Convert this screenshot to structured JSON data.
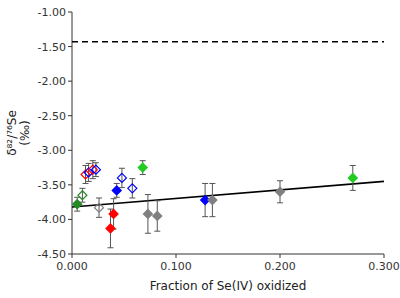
{
  "chart_data": {
    "type": "scatter",
    "xlabel": "Fraction of Se(IV) oxidized",
    "ylabel": "δ⁸²/⁷⁶Se\n(‰)",
    "xlim": [
      0.0,
      0.3
    ],
    "ylim": [
      -4.5,
      -1.0
    ],
    "xticks": [
      {
        "value": 0.0,
        "label": "0.000"
      },
      {
        "value": 0.1,
        "label": "0.100"
      },
      {
        "value": 0.2,
        "label": "0.200"
      },
      {
        "value": 0.3,
        "label": "0.300"
      }
    ],
    "yticks": [
      {
        "value": -4.5,
        "label": "-4.50"
      },
      {
        "value": -4.0,
        "label": "-4.00"
      },
      {
        "value": -3.5,
        "label": "-3.50"
      },
      {
        "value": -3.0,
        "label": "-3.00"
      },
      {
        "value": -2.5,
        "label": "-2.50"
      },
      {
        "value": -2.0,
        "label": "-2.00"
      },
      {
        "value": -1.5,
        "label": "-1.50"
      },
      {
        "value": -1.0,
        "label": "-1.00"
      }
    ],
    "grid": false,
    "series": [
      {
        "type": "line",
        "line_style": "dashed",
        "color": "black",
        "x": [
          0.0,
          0.3
        ],
        "values": [
          -1.43,
          -1.43
        ]
      },
      {
        "type": "line",
        "line_style": "solid",
        "color": "black",
        "x": [
          0.0,
          0.3
        ],
        "values": [
          -3.82,
          -3.45
        ]
      },
      {
        "type": "scatter",
        "marker": "diamond",
        "x": [
          0.005,
          0.037,
          0.04,
          0.043,
          0.068,
          0.073,
          0.082,
          0.128,
          0.135,
          0.2,
          0.27
        ],
        "values": [
          -3.78,
          -4.13,
          -3.92,
          -3.58,
          -3.25,
          -3.92,
          -3.95,
          -3.72,
          -3.72,
          -3.6,
          -3.4
        ],
        "errors": [
          0.1,
          0.28,
          0.22,
          0.1,
          0.1,
          0.28,
          0.22,
          0.24,
          0.24,
          0.16,
          0.18
        ],
        "colors": [
          "#228B22",
          "red",
          "red",
          "blue",
          "#22CC22",
          "gray",
          "gray",
          "blue",
          "gray",
          "gray",
          "#22CC22"
        ]
      },
      {
        "type": "scatter",
        "marker": "diamond-open",
        "x": [
          0.01,
          0.013,
          0.016,
          0.02,
          0.023,
          0.026,
          0.048,
          0.058
        ],
        "values": [
          -3.65,
          -3.35,
          -3.32,
          -3.28,
          -3.28,
          -3.83,
          -3.4,
          -3.55
        ],
        "errors": [
          0.1,
          0.13,
          0.13,
          0.13,
          0.1,
          0.14,
          0.14,
          0.14
        ],
        "colors": [
          "#228B22",
          "red",
          "blue",
          "red",
          "blue",
          "gray",
          "blue",
          "blue"
        ]
      }
    ]
  }
}
